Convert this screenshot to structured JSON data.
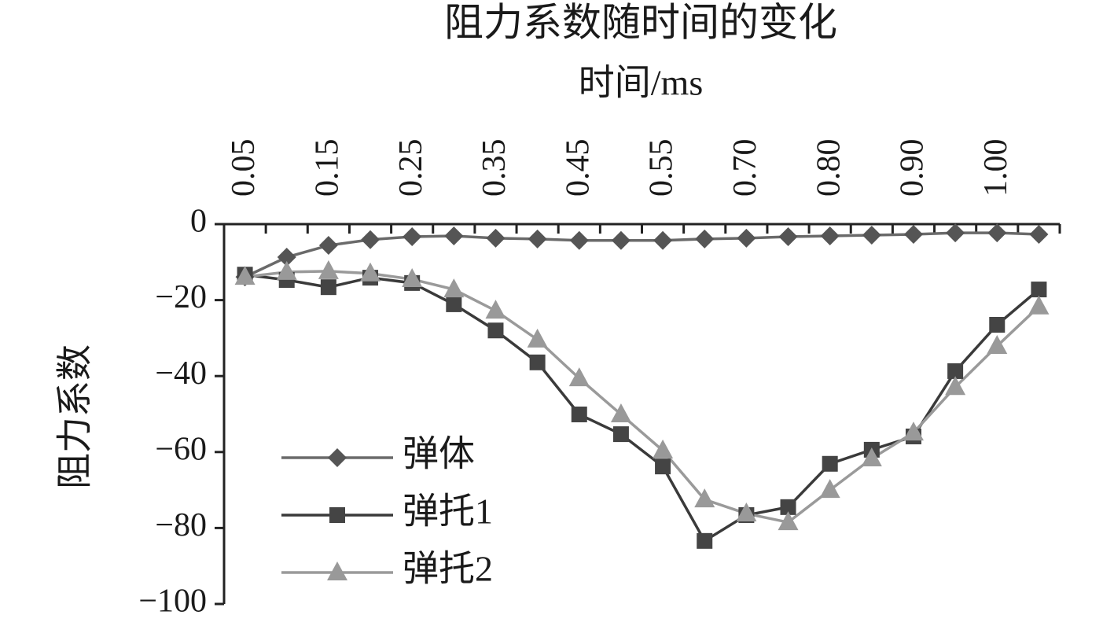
{
  "chart_data": {
    "type": "line",
    "title": "阻力系数随时间的变化",
    "x_label": "时间/ms",
    "y_label": "阻力系数",
    "categories": [
      "0.05",
      null,
      "0.15",
      null,
      "0.25",
      null,
      "0.35",
      null,
      "0.45",
      null,
      "0.55",
      null,
      "0.70",
      null,
      "0.80",
      null,
      "0.90",
      null,
      "1.00",
      null
    ],
    "series": [
      {
        "name": "弹体",
        "color": "#555555",
        "line_color": "#6a6a6a",
        "marker": "diamond",
        "values": [
          -13.9,
          -8.7,
          -5.6,
          -4.1,
          -3.3,
          -3.1,
          -3.7,
          -3.9,
          -4.3,
          -4.3,
          -4.3,
          -3.9,
          -3.7,
          -3.3,
          -3.1,
          -2.9,
          -2.7,
          -2.3,
          -2.3,
          -2.7
        ]
      },
      {
        "name": "弹托1",
        "color": "#444444",
        "line_color": "#3a3a3a",
        "marker": "square",
        "values": [
          -13.3,
          -14.7,
          -16.6,
          -14.1,
          -15.5,
          -21.1,
          -28.0,
          -36.4,
          -50.1,
          -55.3,
          -63.8,
          -83.4,
          -76.6,
          -74.5,
          -63.1,
          -59.4,
          -55.9,
          -38.7,
          -26.5,
          -17.2
        ]
      },
      {
        "name": "弹托2",
        "color": "#999999",
        "line_color": "#9a9a9a",
        "marker": "triangle",
        "values": [
          -13.9,
          -12.6,
          -12.4,
          -13.0,
          -14.5,
          -17.2,
          -22.8,
          -30.4,
          -40.6,
          -50.1,
          -59.6,
          -72.5,
          -76.2,
          -78.5,
          -70.0,
          -61.7,
          -54.9,
          -42.9,
          -32.1,
          -21.7
        ]
      }
    ],
    "ylim": [
      -100,
      0
    ],
    "yticks": [
      {
        "value": -100,
        "label": "−100"
      },
      {
        "value": -80,
        "label": "−80"
      },
      {
        "value": -60,
        "label": "−60"
      },
      {
        "value": -40,
        "label": "−40"
      },
      {
        "value": -20,
        "label": "−20"
      },
      0
    ],
    "x_axis_position": "top",
    "legend": "lower left",
    "grid": false
  }
}
